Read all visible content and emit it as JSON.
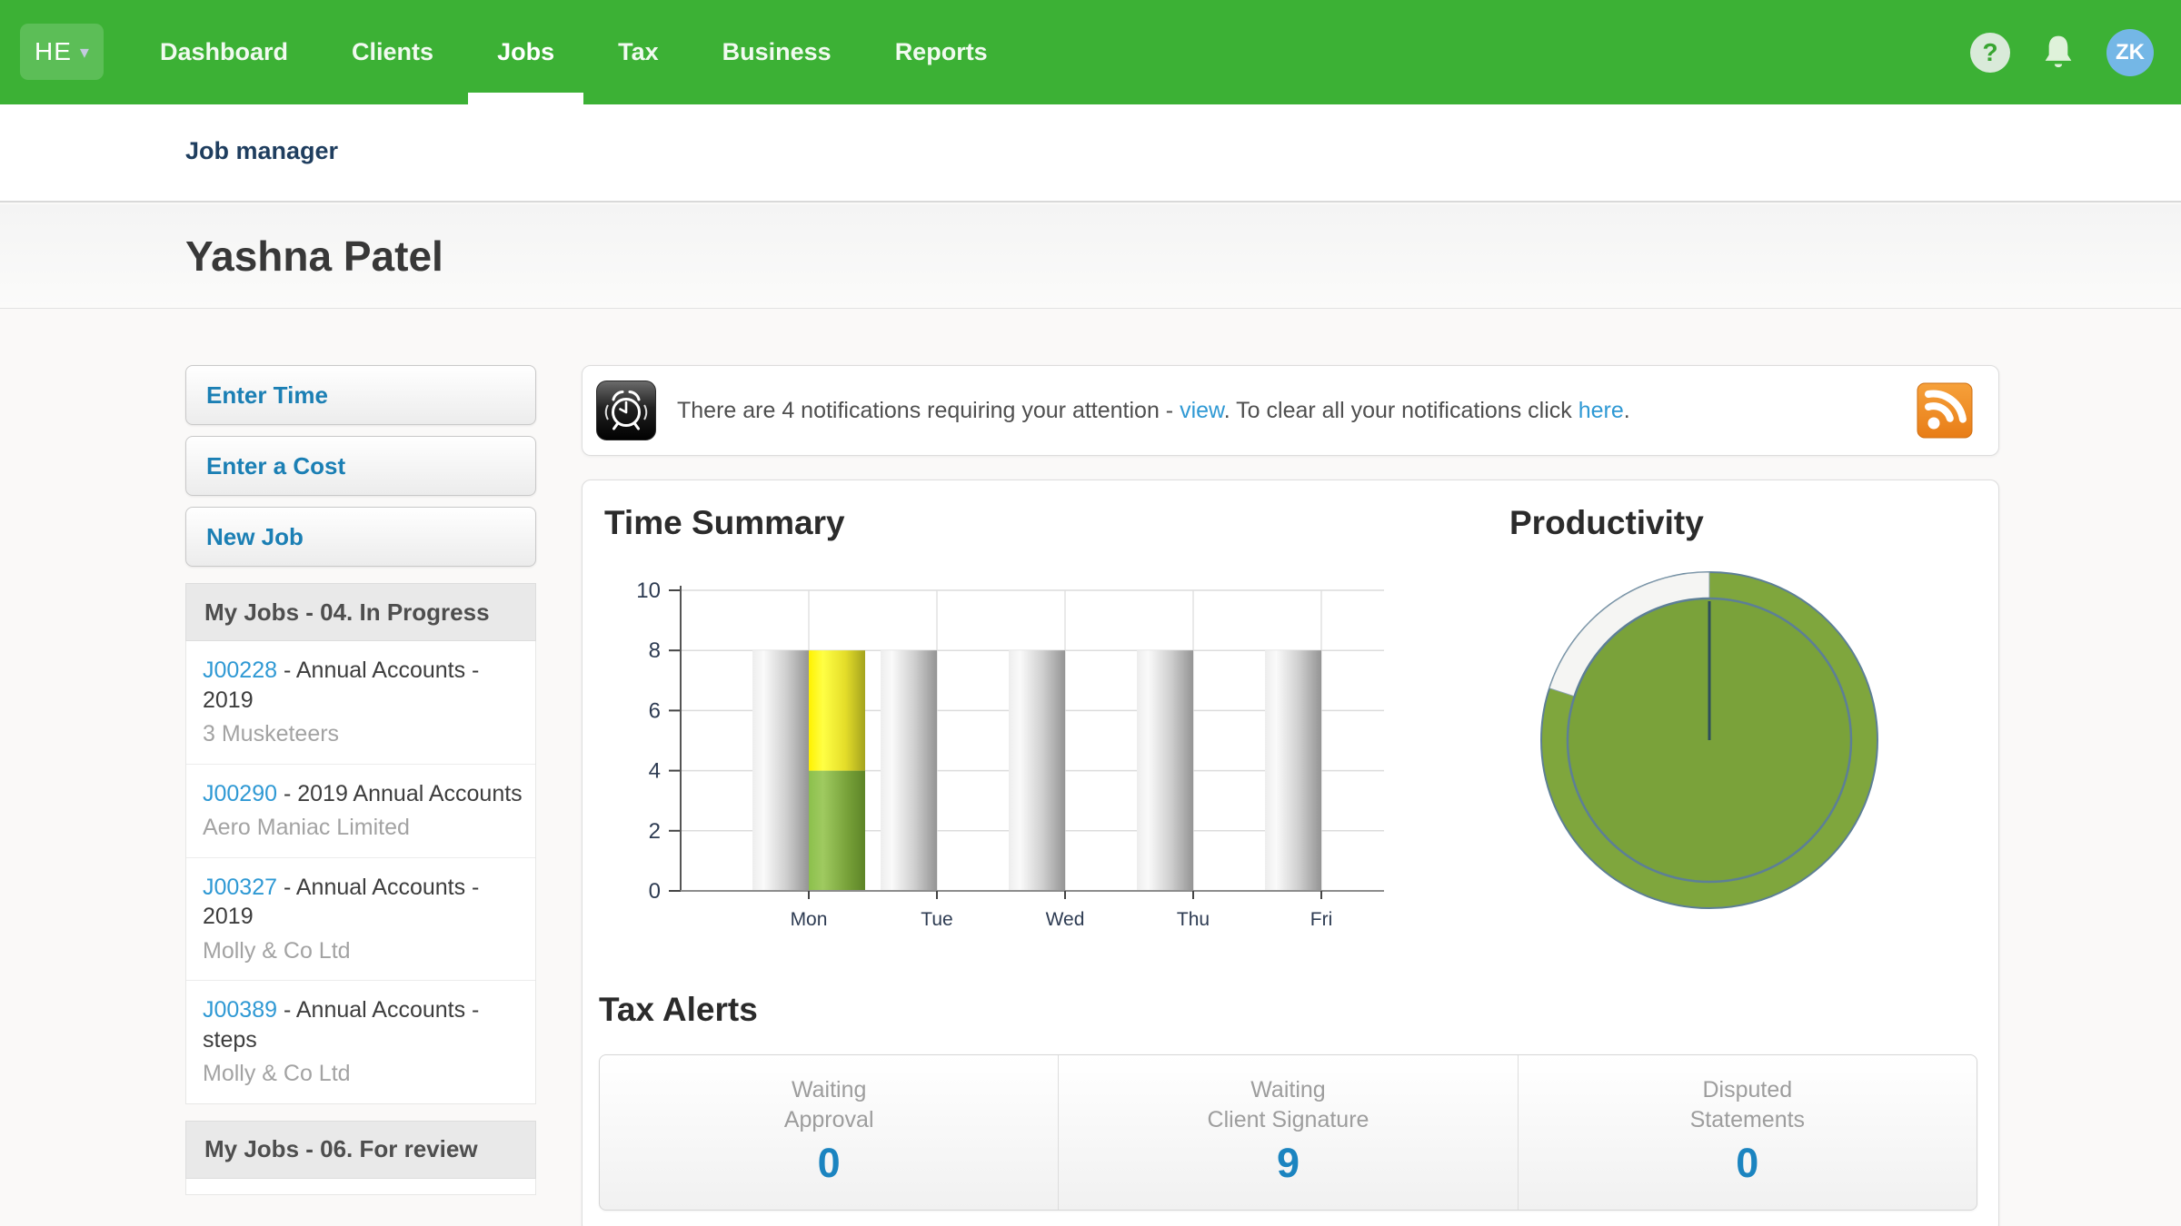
{
  "nav": {
    "logo": "HE",
    "caret_icon": "chevron-down-icon",
    "items": [
      {
        "label": "Dashboard",
        "active": false
      },
      {
        "label": "Clients",
        "active": false
      },
      {
        "label": "Jobs",
        "active": true
      },
      {
        "label": "Tax",
        "active": false
      },
      {
        "label": "Business",
        "active": false
      },
      {
        "label": "Reports",
        "active": false
      }
    ],
    "help_icon": "?",
    "bell_icon": "bell-icon",
    "avatar_initials": "ZK"
  },
  "breadcrumb": "Job manager",
  "page_title": "Yashna Patel",
  "sidebar": {
    "buttons": [
      "Enter Time",
      "Enter a Cost",
      "New Job"
    ],
    "sections": [
      {
        "title": "My Jobs - 04. In Progress",
        "jobs": [
          {
            "code": "J00228",
            "title": "Annual Accounts - 2019",
            "client": "3 Musketeers"
          },
          {
            "code": "J00290",
            "title": "2019 Annual Accounts",
            "client": "Aero Maniac Limited"
          },
          {
            "code": "J00327",
            "title": "Annual Accounts - 2019",
            "client": "Molly & Co Ltd"
          },
          {
            "code": "J00389",
            "title": "Annual Accounts - steps",
            "client": "Molly & Co Ltd"
          }
        ]
      },
      {
        "title": "My Jobs - 06. For review",
        "jobs": []
      }
    ]
  },
  "notification": {
    "icon": "alarm-clock-icon",
    "prefix": "There are 4 notifications requiring your attention - ",
    "view_link": "view",
    "middle": ". To clear all your notifications click ",
    "here_link": "here",
    "suffix": ".",
    "rss_icon": "rss-icon"
  },
  "chart_data": [
    {
      "type": "bar",
      "title": "Time Summary",
      "categories": [
        "Mon",
        "Tue",
        "Wed",
        "Thu",
        "Fri"
      ],
      "series": [
        {
          "name": "scheduled-hours",
          "role": "gray",
          "values": [
            8,
            8,
            8,
            8,
            8
          ]
        },
        {
          "name": "entered-time-standard",
          "role": "green",
          "values": [
            4,
            0,
            0,
            0,
            0
          ]
        },
        {
          "name": "entered-time-additional",
          "role": "yellow",
          "values": [
            4,
            0,
            0,
            0,
            0
          ]
        }
      ],
      "xlabel": "",
      "ylabel": "",
      "ylim": [
        0,
        10
      ],
      "yticks": [
        0,
        2,
        4,
        6,
        8,
        10
      ],
      "grid": true,
      "legend": "none"
    },
    {
      "type": "donut-gauge",
      "title": "Productivity",
      "value_pct": 80,
      "needle_angle_deg": 0,
      "ring_color": "#7fa63d",
      "inner_color": "#7aa23a",
      "empty_color": "#f5f5f3"
    }
  ],
  "tax_alerts": {
    "title": "Tax Alerts",
    "items": [
      {
        "label": "Waiting\nApproval",
        "value": "0"
      },
      {
        "label": "Waiting\nClient Signature",
        "value": "9"
      },
      {
        "label": "Disputed\nStatements",
        "value": "0"
      }
    ]
  },
  "colors": {
    "nav_green": "#3cb135",
    "link_blue": "#2f99d4",
    "action_blue": "#1b7fb4",
    "value_blue": "#1b84c0",
    "avatar_blue": "#74b7e6",
    "rss_orange": "#f08b26",
    "bar_gray": "#bdbdbd",
    "bar_green": "#7fa63d",
    "bar_yellow": "#f2ea1f"
  }
}
